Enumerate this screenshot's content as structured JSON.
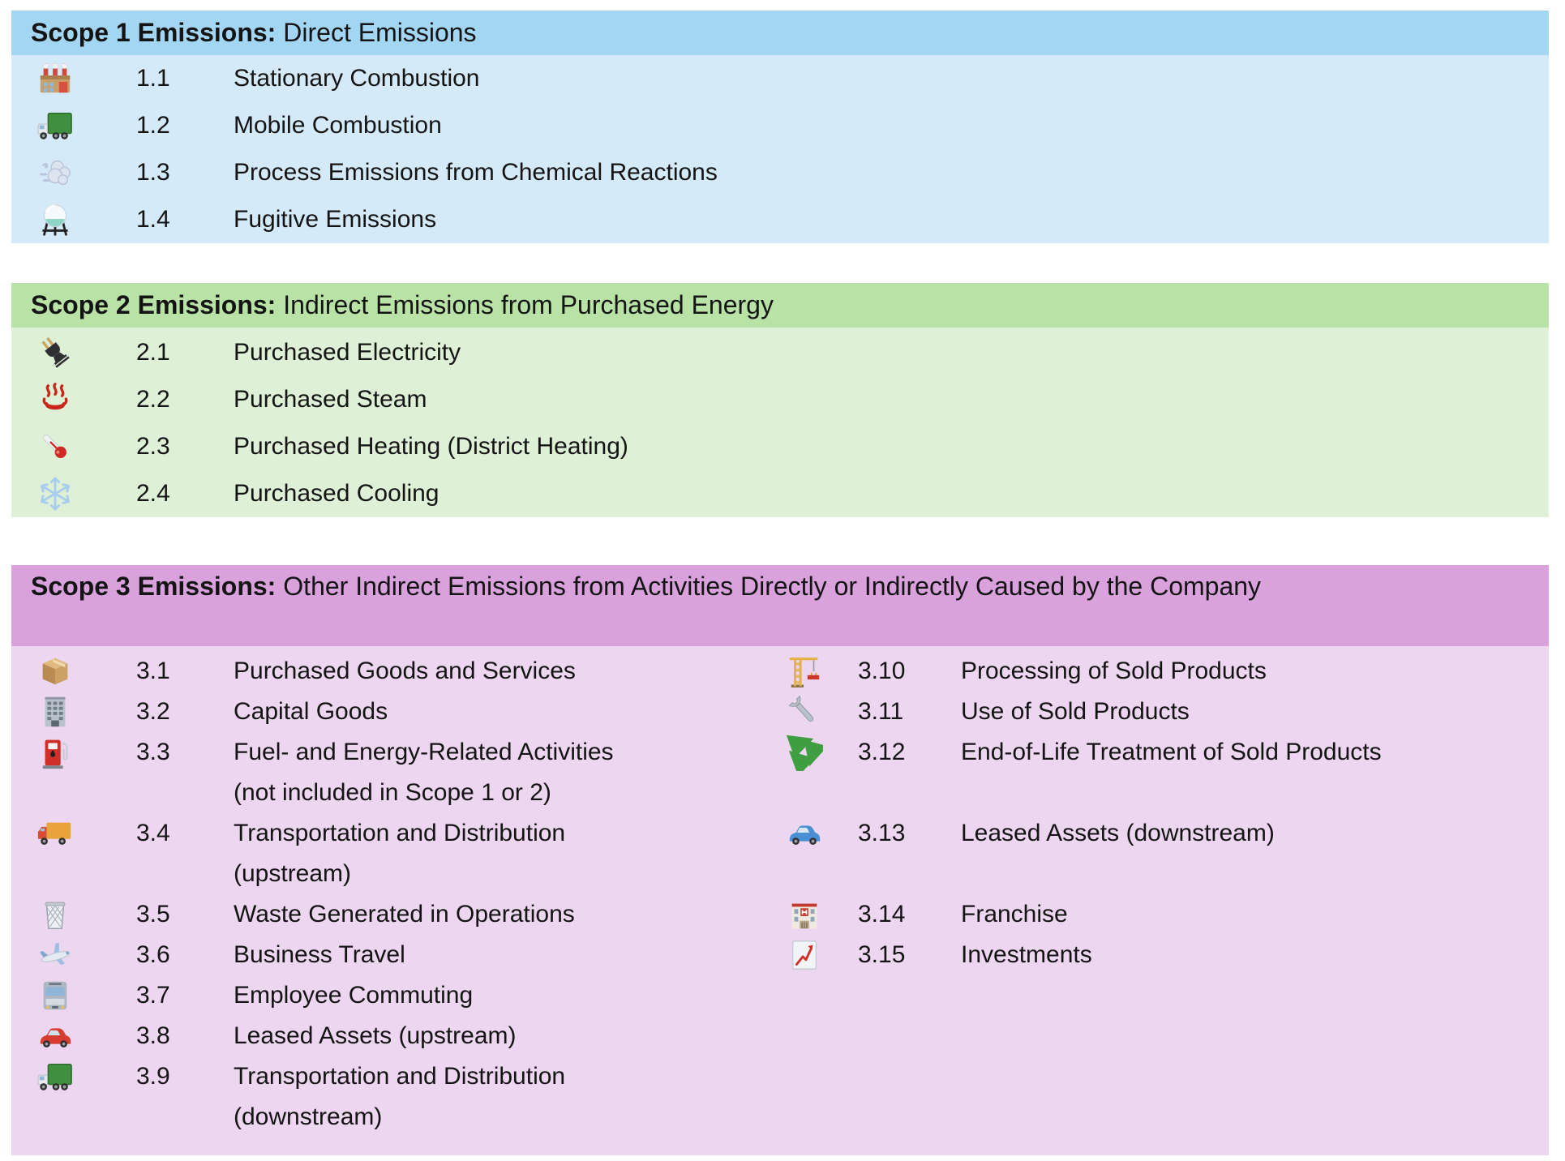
{
  "scopes": [
    {
      "id": "scope1",
      "title": "Scope 1 Emissions:",
      "subtitle": "Direct Emissions",
      "header_bg": "#a3d6f3",
      "body_bg": "#d4eaf8",
      "items": [
        {
          "icon": "factory",
          "num": "1.1",
          "label": "Stationary Combustion"
        },
        {
          "icon": "lorry",
          "num": "1.2",
          "label": "Mobile Combustion"
        },
        {
          "icon": "dash-cloud",
          "num": "1.3",
          "label": "Process Emissions from Chemical Reactions"
        },
        {
          "icon": "gas-tank",
          "num": "1.4",
          "label": " Fugitive Emissions"
        }
      ]
    },
    {
      "id": "scope2",
      "title": "Scope 2 Emissions:",
      "subtitle": "Indirect Emissions from Purchased Energy",
      "header_bg": "#b9e3a6",
      "body_bg": "#def0d6",
      "items": [
        {
          "icon": "electric-plug",
          "num": "2.1",
          "label": "Purchased Electricity"
        },
        {
          "icon": "hot-springs",
          "num": "2.2",
          "label": "Purchased Steam"
        },
        {
          "icon": "thermometer",
          "num": "2.3",
          "label": "Purchased Heating (District Heating)"
        },
        {
          "icon": "snowflake",
          "num": "2.4",
          "label": "Purchased Cooling"
        }
      ]
    },
    {
      "id": "scope3",
      "title": "Scope 3 Emissions:",
      "subtitle": "Other Indirect Emissions from Activities Directly or Indirectly Caused by the Company",
      "header_bg": "#d9a2dd",
      "body_bg": "#edd6ef",
      "left_items": [
        {
          "icon": "package",
          "num": "3.1",
          "label": "Purchased Goods and Services"
        },
        {
          "icon": "office-building",
          "num": "3.2",
          "label": "Capital Goods"
        },
        {
          "icon": "fuel-pump",
          "num": "3.3",
          "label": "Fuel- and Energy-Related Activities",
          "label2": "(not included in Scope 1 or 2)"
        },
        {
          "icon": "delivery-truck",
          "num": "3.4",
          "label": "Transportation and Distribution",
          "label2": "(upstream)"
        },
        {
          "icon": "wastebasket",
          "num": "3.5",
          "label": "Waste Generated in Operations"
        },
        {
          "icon": "airplane",
          "num": "3.6",
          "label": "Business Travel"
        },
        {
          "icon": "bus",
          "num": "3.7",
          "label": "Employee Commuting"
        },
        {
          "icon": "red-car",
          "num": "3.8",
          "label": "Leased Assets (upstream)"
        },
        {
          "icon": "lorry",
          "num": "3.9",
          "label": "Transportation and Distribution",
          "label2": "(downstream)"
        }
      ],
      "right_items": [
        {
          "icon": "tower-crane",
          "num": "3.10",
          "label": "Processing of Sold Products"
        },
        {
          "icon": "wrench",
          "num": "3.11",
          "label": "Use of Sold Products"
        },
        {
          "icon": "recycling",
          "num": "3.12",
          "label": "End-of-Life Treatment of Sold Products"
        },
        {
          "icon": "blue-car",
          "num": "3.13",
          "label": "Leased Assets (downstream)"
        },
        {
          "icon": "hotel",
          "num": "3.14",
          "label": "Franchise"
        },
        {
          "icon": "chart-increasing",
          "num": "3.15",
          "label": "Investments"
        }
      ]
    }
  ]
}
